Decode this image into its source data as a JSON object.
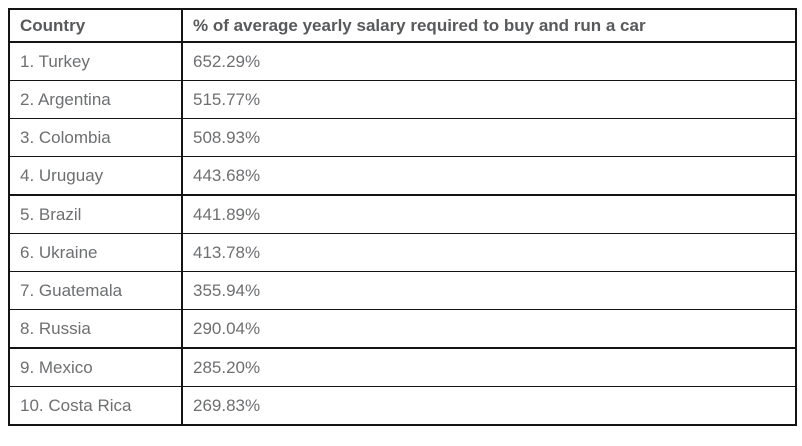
{
  "chart_data": {
    "type": "table",
    "title": "",
    "columns": [
      "Country",
      "% of average yearly salary required to buy and run a car"
    ],
    "rows": [
      [
        "1. Turkey",
        "652.29%"
      ],
      [
        "2. Argentina",
        "515.77%"
      ],
      [
        "3. Colombia",
        "508.93%"
      ],
      [
        "4. Uruguay",
        "443.68%"
      ],
      [
        "5. Brazil",
        "441.89%"
      ],
      [
        "6. Ukraine",
        "413.78%"
      ],
      [
        "7. Guatemala",
        "355.94%"
      ],
      [
        "8. Russia",
        "290.04%"
      ],
      [
        "9. Mexico",
        "285.20%"
      ],
      [
        "10. Costa Rica",
        "269.83%"
      ]
    ],
    "countries": [
      "Turkey",
      "Argentina",
      "Colombia",
      "Uruguay",
      "Brazil",
      "Ukraine",
      "Guatemala",
      "Russia",
      "Mexico",
      "Costa Rica"
    ],
    "ranks": [
      1,
      2,
      3,
      4,
      5,
      6,
      7,
      8,
      9,
      10
    ],
    "values_percent": [
      652.29,
      515.77,
      508.93,
      443.68,
      441.89,
      413.78,
      355.94,
      290.04,
      285.2,
      269.83
    ]
  },
  "colors": {
    "border": "#141414",
    "header_text": "#58595b",
    "body_text": "#6e6f71",
    "background": "#ffffff"
  }
}
